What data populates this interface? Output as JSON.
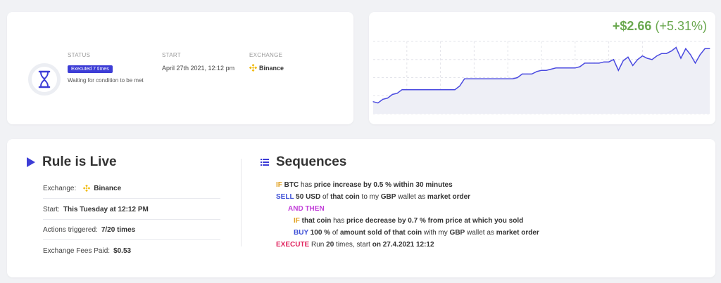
{
  "status": {
    "status_label": "STATUS",
    "executed_badge": "Executed 7 times",
    "status_text": "Waiting for condition to be met",
    "start_label": "START",
    "start_value": "April 27th 2021, 12:12 pm",
    "exchange_label": "EXCHANGE",
    "exchange_value": "Binance",
    "icon": "hourglass-icon",
    "exchange_icon": "binance-icon"
  },
  "gain": {
    "absolute": "+$2.66",
    "percent": "(+5.31%)"
  },
  "colors": {
    "accent": "#3d3dd6",
    "gain": "#6aa84f",
    "line": "#4a4ae0",
    "binance": "#f0b90b",
    "then": "#c23fd9",
    "execute": "#e0245e",
    "if": "#e0a020"
  },
  "chart_data": {
    "type": "area",
    "x": [
      0,
      1,
      2,
      3,
      4,
      5,
      6,
      7,
      8,
      9,
      10,
      11,
      12,
      13,
      14,
      15,
      16,
      17,
      18,
      19,
      20,
      21,
      22,
      23,
      24,
      25,
      26,
      27,
      28,
      29,
      30,
      31,
      32,
      33,
      34,
      35,
      36,
      37,
      38,
      39,
      40,
      41,
      42,
      43,
      44,
      45,
      46,
      47,
      48,
      49,
      50,
      51,
      52,
      53,
      54,
      55,
      56,
      57,
      58,
      59,
      60,
      61,
      62,
      63,
      64,
      65,
      66,
      67,
      68,
      69,
      70
    ],
    "values": [
      1.0,
      0.9,
      1.2,
      1.3,
      1.6,
      1.7,
      2.0,
      2.0,
      2.0,
      2.0,
      2.0,
      2.0,
      2.0,
      2.0,
      2.0,
      2.0,
      2.0,
      2.0,
      2.3,
      2.9,
      2.9,
      2.9,
      2.9,
      2.9,
      2.9,
      2.9,
      2.9,
      2.9,
      2.9,
      2.9,
      3.0,
      3.3,
      3.3,
      3.3,
      3.5,
      3.6,
      3.6,
      3.7,
      3.8,
      3.8,
      3.8,
      3.8,
      3.8,
      3.9,
      4.2,
      4.2,
      4.2,
      4.2,
      4.3,
      4.3,
      4.5,
      3.6,
      4.4,
      4.7,
      4.0,
      4.5,
      4.8,
      4.6,
      4.5,
      4.8,
      5.0,
      5.0,
      5.2,
      5.5,
      4.6,
      5.4,
      4.9,
      4.2,
      4.9,
      5.4,
      5.4
    ],
    "ylim": [
      0,
      6
    ],
    "grid": true
  },
  "rule": {
    "title": "Rule is Live",
    "rows": [
      {
        "key": "Exchange:",
        "value": "Binance",
        "icon": "binance-icon"
      },
      {
        "key": "Start:",
        "value": "This Tuesday at 12:12 PM"
      },
      {
        "key": "Actions triggered:",
        "value": "7/20 times"
      },
      {
        "key": "Exchange Fees Paid:",
        "value": "$0.53"
      }
    ]
  },
  "sequences": {
    "title": "Sequences",
    "lines": [
      {
        "parts": [
          "IF",
          " BTC",
          " has ",
          "price increase by 0.5 % within 30 minutes"
        ]
      },
      {
        "parts": [
          "SELL",
          " 50 USD",
          " of ",
          "that coin",
          " to my ",
          "GBP",
          " wallet as ",
          "market order"
        ]
      },
      {
        "parts": [
          "AND THEN"
        ]
      },
      {
        "parts": [
          "IF",
          " that coin",
          " has ",
          "price decrease by 0.7 % from price at which you sold"
        ]
      },
      {
        "parts": [
          "BUY",
          " 100 %",
          " of ",
          "amount sold of that coin",
          " with my ",
          "GBP",
          " wallet as ",
          "market order"
        ]
      },
      {
        "parts": [
          "EXECUTE",
          " Run ",
          "20",
          " times, start ",
          "on 27.4.2021 12:12"
        ]
      }
    ]
  }
}
